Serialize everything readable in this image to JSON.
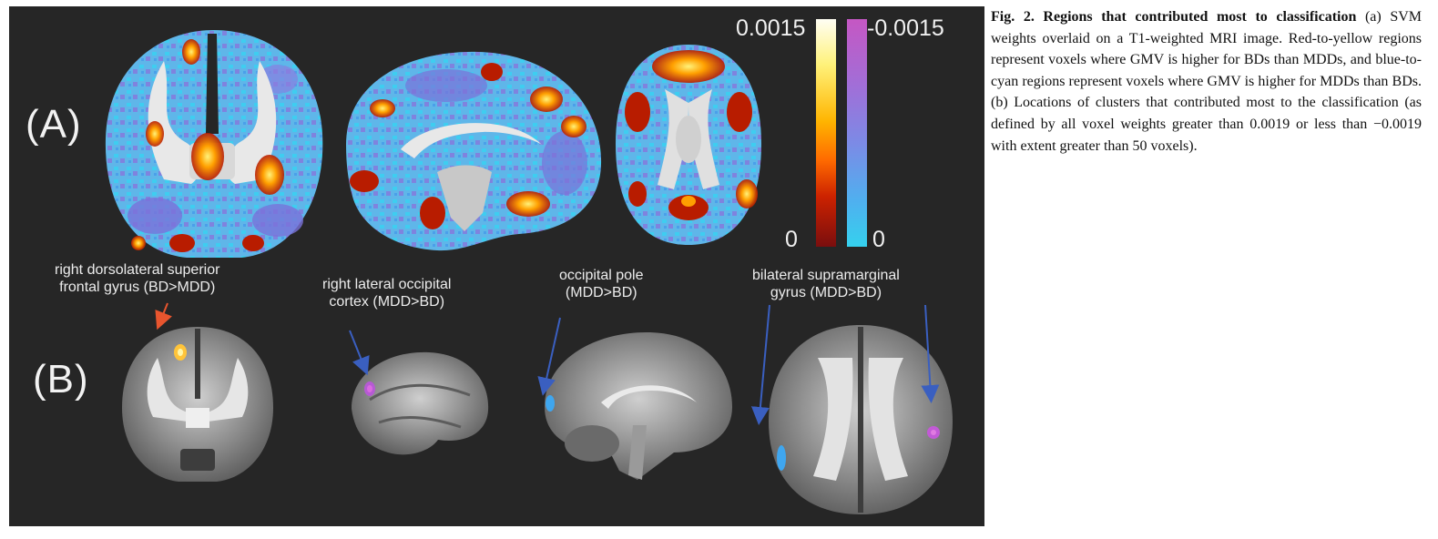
{
  "panel_labels": {
    "a": "(A)",
    "b": "(B)"
  },
  "colorbar": {
    "positive_max": "0.0015",
    "negative_max": "-0.0015",
    "positive_zero": "0",
    "negative_zero": "0",
    "positive_colors": [
      "#fffef4",
      "#fff27a",
      "#ffb400",
      "#ff6a00",
      "#cc2200",
      "#7a0e0e"
    ],
    "negative_colors": [
      "#c557c3",
      "#a06fd8",
      "#7b8be6",
      "#4fb0ef",
      "#35d1ee"
    ]
  },
  "region_labels": {
    "dlsfg_line1": "right dorsolateral superior",
    "dlsfg_line2": "frontal gyrus (BD>MDD)",
    "loc_line1": "right lateral occipital",
    "loc_line2": "cortex (MDD>BD)",
    "op_line1": "occipital pole",
    "op_line2": "(MDD>BD)",
    "smg_line1": "bilateral supramarginal",
    "smg_line2": "gyrus (MDD>BD)"
  },
  "arrow_colors": {
    "bd_gt_mdd": "#e8552e",
    "mdd_gt_bd": "#3a5fc0"
  },
  "caption": {
    "title": "Fig. 2. Regions that contributed most to classification",
    "body": " (a) SVM weights overlaid on a T1-weighted MRI image. Red-to-yellow regions represent voxels where GMV is higher for BDs than MDDs, and blue-to-cyan regions represent voxels where GMV is higher for MDDs than BDs. (b) Locations of clusters that contributed most to the classification (as defined by all voxel weights greater than 0.0019 or less than −0.0019 with extent greater than 50 voxels)."
  }
}
